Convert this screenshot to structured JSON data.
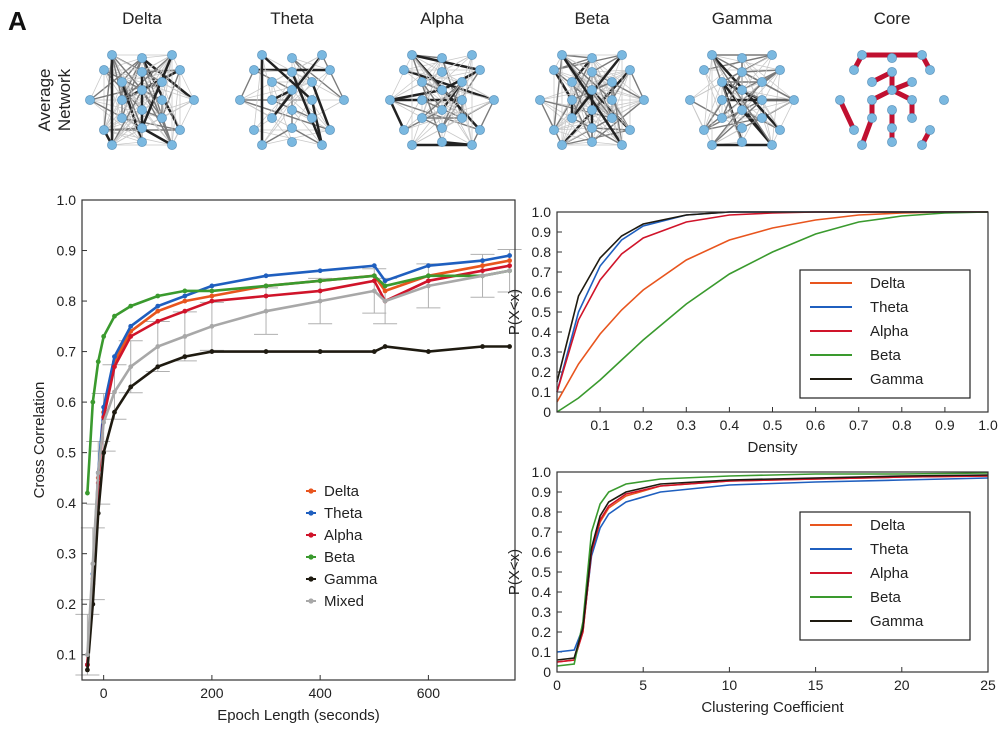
{
  "panel_letter": "A",
  "network_row_label": [
    "Average",
    "Network"
  ],
  "networks": [
    {
      "title": "Delta",
      "style": "gray",
      "density": 0.9
    },
    {
      "title": "Theta",
      "style": "gray",
      "density": 0.55
    },
    {
      "title": "Alpha",
      "style": "gray",
      "density": 0.6
    },
    {
      "title": "Beta",
      "style": "gray",
      "density": 1.0
    },
    {
      "title": "Gamma",
      "style": "gray",
      "density": 0.6
    },
    {
      "title": "Core",
      "style": "core",
      "density": 0.2
    }
  ],
  "colors": {
    "Delta": "#e8551e",
    "Theta": "#1f5fbf",
    "Alpha": "#d0142a",
    "Beta": "#3a9a2e",
    "Gamma": "#1e1a10",
    "Mixed": "#a8a8a8",
    "node": "#7ab8e0",
    "core_edge": "#c01030"
  },
  "chart_data": [
    {
      "type": "line",
      "xlabel": "Epoch Length (seconds)",
      "ylabel": "Cross Correlation",
      "xlim": [
        -40,
        760
      ],
      "ylim": [
        0.05,
        1.0
      ],
      "xticks": [
        "0",
        "200",
        "400",
        "600"
      ],
      "yticks": [
        "0.1",
        "0.2",
        "0.3",
        "0.4",
        "0.5",
        "0.6",
        "0.7",
        "0.8",
        "0.9",
        "1.0"
      ],
      "error_bars": true,
      "legend_position": "lower-right",
      "series": [
        {
          "name": "Delta",
          "x": [
            -30,
            -20,
            -10,
            0,
            20,
            50,
            100,
            150,
            200,
            300,
            400,
            500,
            520,
            600,
            700,
            750
          ],
          "y": [
            0.08,
            0.25,
            0.45,
            0.58,
            0.68,
            0.74,
            0.78,
            0.8,
            0.81,
            0.83,
            0.84,
            0.85,
            0.82,
            0.85,
            0.87,
            0.88
          ]
        },
        {
          "name": "Theta",
          "x": [
            -30,
            -20,
            -10,
            0,
            20,
            50,
            100,
            150,
            200,
            300,
            400,
            500,
            520,
            600,
            700,
            750
          ],
          "y": [
            0.08,
            0.26,
            0.46,
            0.59,
            0.69,
            0.75,
            0.79,
            0.81,
            0.83,
            0.85,
            0.86,
            0.87,
            0.84,
            0.87,
            0.88,
            0.89
          ]
        },
        {
          "name": "Alpha",
          "x": [
            -30,
            -20,
            -10,
            0,
            20,
            50,
            100,
            150,
            200,
            300,
            400,
            500,
            520,
            600,
            700,
            750
          ],
          "y": [
            0.08,
            0.24,
            0.44,
            0.57,
            0.67,
            0.73,
            0.76,
            0.78,
            0.8,
            0.81,
            0.82,
            0.84,
            0.8,
            0.84,
            0.86,
            0.87
          ]
        },
        {
          "name": "Beta",
          "x": [
            -30,
            -20,
            -10,
            0,
            20,
            50,
            100,
            150,
            200,
            300,
            400,
            500,
            520,
            600,
            700,
            750
          ],
          "y": [
            0.42,
            0.6,
            0.68,
            0.73,
            0.77,
            0.79,
            0.81,
            0.82,
            0.82,
            0.83,
            0.84,
            0.85,
            0.83,
            0.85,
            0.85,
            0.86
          ]
        },
        {
          "name": "Gamma",
          "x": [
            -30,
            -20,
            -10,
            0,
            20,
            50,
            100,
            150,
            200,
            300,
            400,
            500,
            520,
            600,
            700,
            750
          ],
          "y": [
            0.07,
            0.2,
            0.38,
            0.5,
            0.58,
            0.63,
            0.67,
            0.69,
            0.7,
            0.7,
            0.7,
            0.7,
            0.71,
            0.7,
            0.71,
            0.71
          ]
        },
        {
          "name": "Mixed",
          "x": [
            -30,
            -20,
            -10,
            0,
            20,
            50,
            100,
            150,
            200,
            300,
            400,
            500,
            520,
            600,
            700,
            750
          ],
          "y": [
            0.1,
            0.28,
            0.46,
            0.56,
            0.62,
            0.67,
            0.71,
            0.73,
            0.75,
            0.78,
            0.8,
            0.82,
            0.8,
            0.83,
            0.85,
            0.86
          ]
        }
      ]
    },
    {
      "type": "line",
      "xlabel": "Density",
      "ylabel": "P(X<x)",
      "xlim": [
        0,
        1.0
      ],
      "ylim": [
        0,
        1.0
      ],
      "xticks": [
        "0.1",
        "0.2",
        "0.3",
        "0.4",
        "0.5",
        "0.6",
        "0.7",
        "0.8",
        "0.9",
        "1.0"
      ],
      "yticks": [
        "0",
        "0.1",
        "0.2",
        "0.3",
        "0.4",
        "0.5",
        "0.6",
        "0.7",
        "0.8",
        "0.9",
        "1.0"
      ],
      "legend_position": "right",
      "series": [
        {
          "name": "Delta",
          "x": [
            0,
            0.05,
            0.1,
            0.15,
            0.2,
            0.3,
            0.4,
            0.5,
            0.6,
            0.7,
            0.8,
            0.9,
            1.0
          ],
          "y": [
            0.05,
            0.24,
            0.39,
            0.51,
            0.61,
            0.76,
            0.86,
            0.92,
            0.96,
            0.985,
            0.995,
            1.0,
            1.0
          ]
        },
        {
          "name": "Theta",
          "x": [
            0,
            0.05,
            0.1,
            0.15,
            0.2,
            0.3,
            0.4,
            0.5,
            0.6,
            0.7,
            0.8,
            0.9,
            1.0
          ],
          "y": [
            0.1,
            0.5,
            0.73,
            0.86,
            0.93,
            0.985,
            1.0,
            1.0,
            1.0,
            1.0,
            1.0,
            1.0,
            1.0
          ]
        },
        {
          "name": "Alpha",
          "x": [
            0,
            0.05,
            0.1,
            0.15,
            0.2,
            0.3,
            0.4,
            0.5,
            0.6,
            0.7,
            0.8,
            0.9,
            1.0
          ],
          "y": [
            0.1,
            0.46,
            0.66,
            0.79,
            0.87,
            0.95,
            0.985,
            0.995,
            1.0,
            1.0,
            1.0,
            1.0,
            1.0
          ]
        },
        {
          "name": "Beta",
          "x": [
            0,
            0.05,
            0.1,
            0.15,
            0.2,
            0.3,
            0.4,
            0.5,
            0.6,
            0.7,
            0.8,
            0.9,
            1.0
          ],
          "y": [
            0.0,
            0.07,
            0.16,
            0.26,
            0.36,
            0.54,
            0.69,
            0.8,
            0.89,
            0.95,
            0.98,
            0.995,
            1.0
          ]
        },
        {
          "name": "Gamma",
          "x": [
            0,
            0.05,
            0.1,
            0.15,
            0.2,
            0.3,
            0.4,
            0.5,
            0.6,
            0.7,
            0.8,
            0.9,
            1.0
          ],
          "y": [
            0.15,
            0.58,
            0.77,
            0.88,
            0.94,
            0.985,
            1.0,
            1.0,
            1.0,
            1.0,
            1.0,
            1.0,
            1.0
          ]
        }
      ]
    },
    {
      "type": "line",
      "xlabel": "Clustering Coefficient",
      "ylabel": "P(X<x)",
      "xlim": [
        0,
        25
      ],
      "ylim": [
        0,
        1.0
      ],
      "xticks": [
        "0",
        "5",
        "10",
        "15",
        "20",
        "25"
      ],
      "yticks": [
        "0",
        "0.1",
        "0.2",
        "0.3",
        "0.4",
        "0.5",
        "0.6",
        "0.7",
        "0.8",
        "0.9",
        "1.0"
      ],
      "legend_position": "right",
      "series": [
        {
          "name": "Delta",
          "x": [
            0,
            1,
            1.5,
            2,
            2.5,
            3,
            4,
            6,
            10,
            15,
            20,
            25
          ],
          "y": [
            0.05,
            0.06,
            0.2,
            0.6,
            0.75,
            0.82,
            0.88,
            0.93,
            0.955,
            0.965,
            0.975,
            0.98
          ]
        },
        {
          "name": "Theta",
          "x": [
            0,
            1,
            1.5,
            2,
            2.5,
            3,
            4,
            6,
            10,
            15,
            20,
            25
          ],
          "y": [
            0.1,
            0.11,
            0.22,
            0.58,
            0.72,
            0.79,
            0.85,
            0.9,
            0.935,
            0.95,
            0.96,
            0.97
          ]
        },
        {
          "name": "Alpha",
          "x": [
            0,
            1,
            1.5,
            2,
            2.5,
            3,
            4,
            6,
            10,
            15,
            20,
            25
          ],
          "y": [
            0.05,
            0.06,
            0.2,
            0.6,
            0.76,
            0.83,
            0.89,
            0.93,
            0.955,
            0.965,
            0.975,
            0.98
          ]
        },
        {
          "name": "Beta",
          "x": [
            0,
            1,
            1.5,
            2,
            2.5,
            3,
            4,
            6,
            10,
            15,
            20,
            25
          ],
          "y": [
            0.03,
            0.04,
            0.25,
            0.7,
            0.84,
            0.9,
            0.94,
            0.965,
            0.98,
            0.99,
            0.99,
            0.995
          ]
        },
        {
          "name": "Gamma",
          "x": [
            0,
            1,
            1.5,
            2,
            2.5,
            3,
            4,
            6,
            10,
            15,
            20,
            25
          ],
          "y": [
            0.06,
            0.07,
            0.22,
            0.62,
            0.78,
            0.85,
            0.9,
            0.94,
            0.96,
            0.97,
            0.98,
            0.985
          ]
        }
      ]
    }
  ]
}
